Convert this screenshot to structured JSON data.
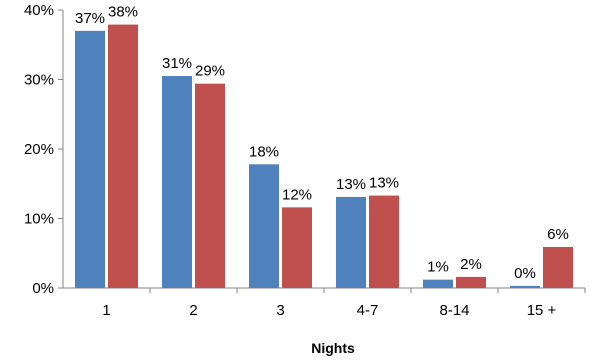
{
  "chart_data": {
    "type": "bar",
    "title": "",
    "xlabel": "Nights",
    "ylabel": "",
    "categories": [
      "1",
      "2",
      "3",
      "4-7",
      "8-14",
      "15 +"
    ],
    "series": [
      {
        "values": [
          37,
          30.5,
          17.8,
          13.1,
          1.2,
          0.3
        ],
        "labels": [
          "37%",
          "31%",
          "18%",
          "13%",
          "1%",
          "0%"
        ],
        "color": "#4F81BD"
      },
      {
        "values": [
          37.9,
          29.4,
          11.6,
          13.3,
          1.6,
          5.9
        ],
        "labels": [
          "38%",
          "29%",
          "12%",
          "13%",
          "2%",
          "6%"
        ],
        "color": "#C0504D"
      }
    ],
    "ylim": [
      0,
      40
    ],
    "yticks": [
      0,
      10,
      20,
      30,
      40
    ],
    "ytick_labels": [
      "0%",
      "10%",
      "20%",
      "30%",
      "40%"
    ],
    "grid": false,
    "legend": "none"
  }
}
